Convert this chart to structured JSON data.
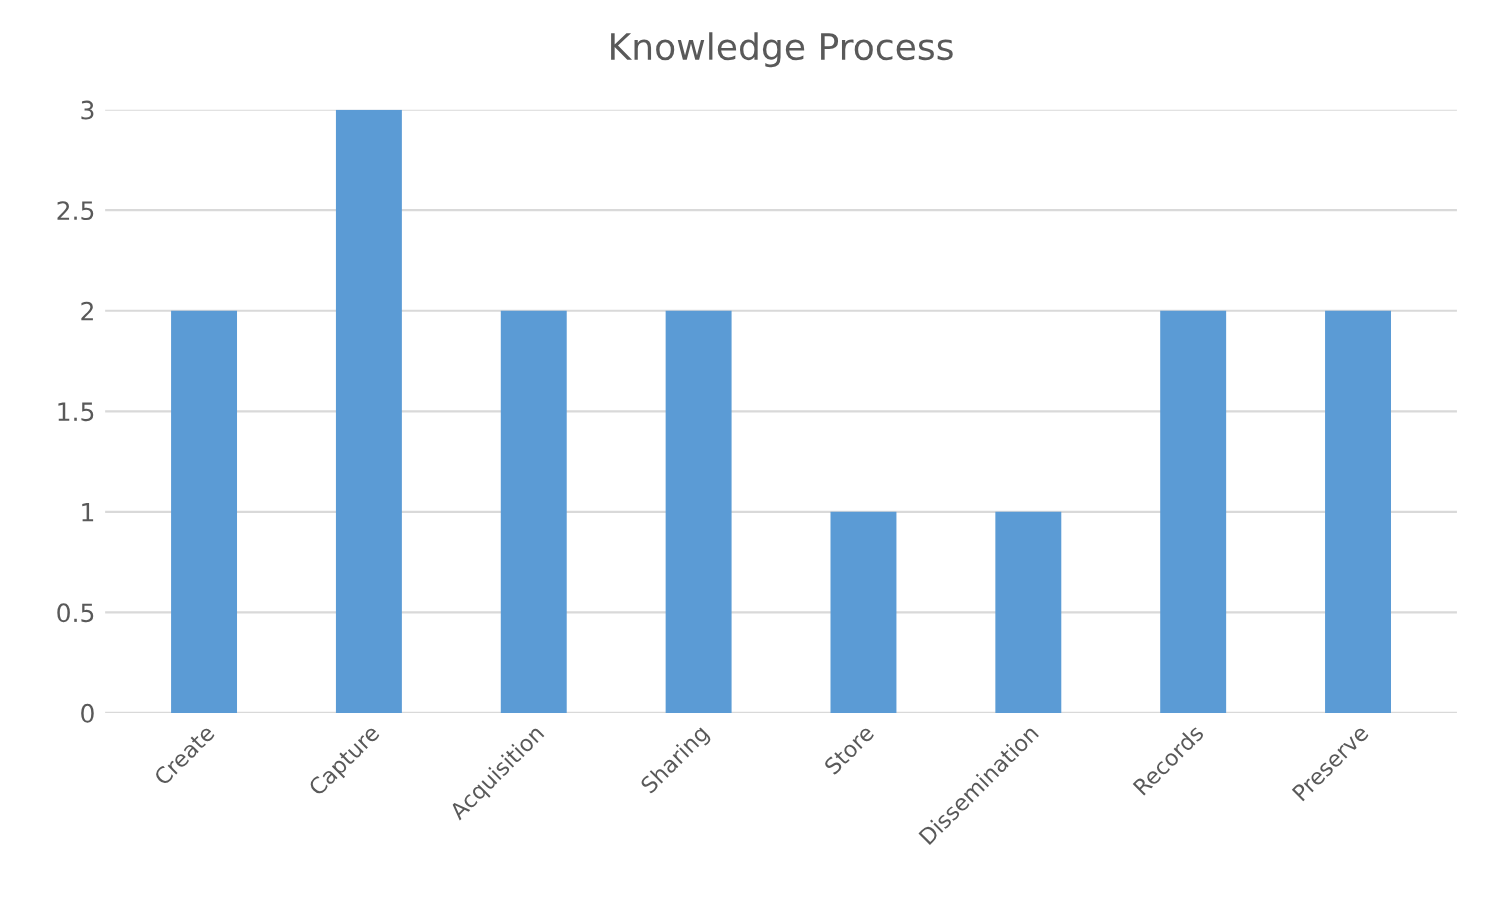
{
  "chart_data": {
    "type": "bar",
    "title": "Knowledge Process",
    "categories": [
      "Create",
      "Capture",
      "Acquisition",
      "Sharing",
      "Store",
      "Dissemination",
      "Records",
      "Preserve"
    ],
    "values": [
      2,
      3,
      2,
      2,
      1,
      1,
      2,
      2
    ],
    "color": "#5b9bd5",
    "ylim": [
      0,
      3
    ],
    "yticks": [
      0,
      0.5,
      1,
      1.5,
      2,
      2.5,
      3
    ],
    "grid": "y"
  }
}
